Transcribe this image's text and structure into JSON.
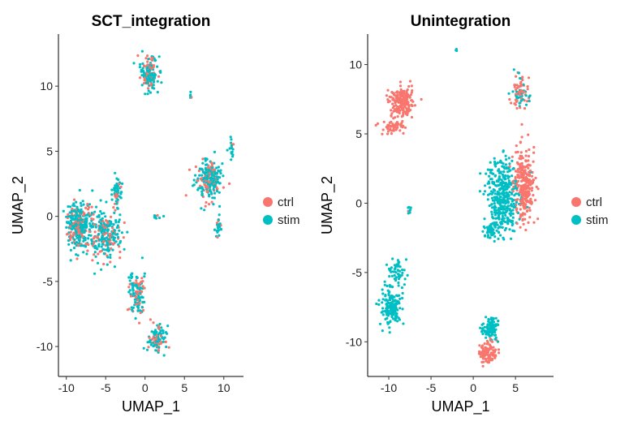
{
  "chart_data": [
    {
      "type": "scatter",
      "title": "SCT_integration",
      "xlabel": "UMAP_1",
      "ylabel": "UMAP_2",
      "xlim": [
        -11,
        12.5
      ],
      "ylim": [
        -12.3,
        14
      ],
      "xticks": [
        -10,
        -5,
        0,
        5,
        10
      ],
      "yticks": [
        -10,
        -5,
        0,
        5,
        10
      ],
      "legend": [
        {
          "label": "ctrl",
          "color": "#F8766D"
        },
        {
          "label": "stim",
          "color": "#00BFC4"
        }
      ],
      "clusters": [
        {
          "name": "top-cluster",
          "x": 0.5,
          "y": 11.0,
          "sx": 1.0,
          "sy": 1.2,
          "n": 160,
          "ctrl_frac": 0.3
        },
        {
          "name": "small-right-top",
          "x": 5.8,
          "y": 9.3,
          "sx": 0.15,
          "sy": 0.2,
          "n": 6,
          "ctrl_frac": 0.2
        },
        {
          "name": "right-cluster",
          "x": 8.0,
          "y": 2.8,
          "sx": 1.5,
          "sy": 1.4,
          "n": 220,
          "ctrl_frac": 0.3
        },
        {
          "name": "right-tail",
          "x": 9.3,
          "y": -0.8,
          "sx": 0.4,
          "sy": 0.7,
          "n": 25,
          "ctrl_frac": 0.2
        },
        {
          "name": "right-spike",
          "x": 11.0,
          "y": 5.5,
          "sx": 0.25,
          "sy": 0.9,
          "n": 18,
          "ctrl_frac": 0.2
        },
        {
          "name": "main-left",
          "x": -8.5,
          "y": -0.6,
          "sx": 1.5,
          "sy": 1.5,
          "n": 320,
          "ctrl_frac": 0.3
        },
        {
          "name": "main-mid",
          "x": -5.0,
          "y": -1.5,
          "sx": 2.0,
          "sy": 1.8,
          "n": 240,
          "ctrl_frac": 0.3
        },
        {
          "name": "main-top",
          "x": -3.5,
          "y": 2.0,
          "sx": 0.5,
          "sy": 1.0,
          "n": 50,
          "ctrl_frac": 0.25
        },
        {
          "name": "stem",
          "x": -1.0,
          "y": -6.0,
          "sx": 0.9,
          "sy": 1.5,
          "n": 120,
          "ctrl_frac": 0.3
        },
        {
          "name": "lower-tail",
          "x": 1.5,
          "y": -9.5,
          "sx": 1.0,
          "sy": 1.0,
          "n": 100,
          "ctrl_frac": 0.3
        },
        {
          "name": "small-mid",
          "x": 1.5,
          "y": 0.0,
          "sx": 0.5,
          "sy": 0.25,
          "n": 8,
          "ctrl_frac": 0.2
        }
      ]
    },
    {
      "type": "scatter",
      "title": "Unintegration",
      "xlabel": "UMAP_1",
      "ylabel": "UMAP_2",
      "xlim": [
        -12.5,
        9.5
      ],
      "ylim": [
        -12.5,
        12.2
      ],
      "xticks": [
        -10,
        -5,
        0,
        5
      ],
      "yticks": [
        -10,
        -5,
        0,
        5,
        10
      ],
      "legend": [
        {
          "label": "ctrl",
          "color": "#F8766D"
        },
        {
          "label": "stim",
          "color": "#00BFC4"
        }
      ],
      "clusters": [
        {
          "name": "ctrl-top-left",
          "x": -8.5,
          "y": 7.3,
          "sx": 1.2,
          "sy": 1.0,
          "n": 190,
          "ctrl_frac": 1.0
        },
        {
          "name": "ctrl-streak",
          "x": -9.5,
          "y": 5.5,
          "sx": 1.3,
          "sy": 0.5,
          "n": 50,
          "ctrl_frac": 1.0
        },
        {
          "name": "stim-tiny-top",
          "x": -2.0,
          "y": 11.0,
          "sx": 0.1,
          "sy": 0.1,
          "n": 3,
          "ctrl_frac": 0.0
        },
        {
          "name": "stim-big-left",
          "x": 3.5,
          "y": 0.5,
          "sx": 1.6,
          "sy": 2.5,
          "n": 380,
          "ctrl_frac": 0.0
        },
        {
          "name": "ctrl-big-right",
          "x": 6.0,
          "y": 1.5,
          "sx": 1.1,
          "sy": 2.3,
          "n": 260,
          "ctrl_frac": 1.0
        },
        {
          "name": "top-right",
          "x": 5.6,
          "y": 8.0,
          "sx": 0.9,
          "sy": 1.0,
          "n": 90,
          "ctrl_frac": 0.5
        },
        {
          "name": "stim-mid-spike",
          "x": 2.0,
          "y": -2.0,
          "sx": 0.8,
          "sy": 0.6,
          "n": 50,
          "ctrl_frac": 0.0
        },
        {
          "name": "small-mid-left",
          "x": -7.5,
          "y": -0.5,
          "sx": 0.3,
          "sy": 0.3,
          "n": 8,
          "ctrl_frac": 0.4
        },
        {
          "name": "stim-bottom-left",
          "x": -9.8,
          "y": -7.5,
          "sx": 1.0,
          "sy": 1.2,
          "n": 160,
          "ctrl_frac": 0.0
        },
        {
          "name": "stim-bottom-left-arm",
          "x": -9.0,
          "y": -5.0,
          "sx": 1.0,
          "sy": 0.7,
          "n": 50,
          "ctrl_frac": 0.0
        },
        {
          "name": "stim-bottom-mid",
          "x": 2.0,
          "y": -9.0,
          "sx": 1.0,
          "sy": 0.7,
          "n": 100,
          "ctrl_frac": 0.0
        },
        {
          "name": "ctrl-bottom-mid",
          "x": 1.8,
          "y": -10.8,
          "sx": 0.9,
          "sy": 0.7,
          "n": 100,
          "ctrl_frac": 1.0
        }
      ]
    }
  ]
}
